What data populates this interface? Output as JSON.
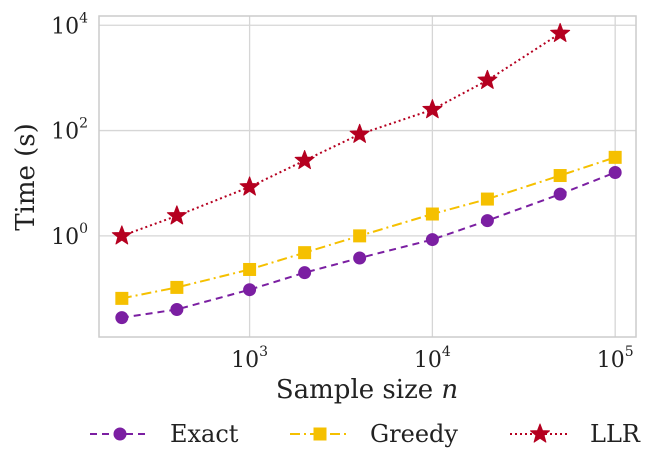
{
  "chart_data": {
    "type": "line",
    "xscale": "log",
    "yscale": "log",
    "xlabel_text": "Sample size",
    "xlabel_var": "n",
    "ylabel": "Time (s)",
    "xlim": [
      150,
      130000
    ],
    "ylim": [
      0.012,
      15000
    ],
    "grid": true,
    "legend_position": "bottom",
    "x_ticks": [
      {
        "value": 1000,
        "base": "10",
        "exp": "3"
      },
      {
        "value": 10000,
        "base": "10",
        "exp": "4"
      },
      {
        "value": 100000,
        "base": "10",
        "exp": "5"
      }
    ],
    "y_ticks": [
      {
        "value": 1,
        "base": "10",
        "exp": "0"
      },
      {
        "value": 100,
        "base": "10",
        "exp": "2"
      },
      {
        "value": 10000,
        "base": "10",
        "exp": "4"
      }
    ],
    "series": [
      {
        "name": "Exact",
        "color": "#7b1fa2",
        "marker": "circle",
        "dash": "7,5",
        "x": [
          200,
          400,
          1000,
          2000,
          4000,
          10000,
          20000,
          50000,
          100000
        ],
        "y": [
          0.028,
          0.04,
          0.095,
          0.2,
          0.38,
          0.85,
          1.95,
          6.2,
          16
        ]
      },
      {
        "name": "Greedy",
        "color": "#f5c000",
        "marker": "square",
        "dash": "10,4,2,4",
        "x": [
          200,
          400,
          1000,
          2000,
          4000,
          10000,
          20000,
          50000,
          100000
        ],
        "y": [
          0.065,
          0.105,
          0.23,
          0.48,
          1.0,
          2.6,
          5.0,
          14,
          31
        ]
      },
      {
        "name": "LLR",
        "color": "#b50020",
        "marker": "star",
        "dash": "2,3",
        "x": [
          200,
          400,
          1000,
          2000,
          4000,
          10000,
          20000,
          50000
        ],
        "y": [
          1.0,
          2.4,
          8.5,
          27,
          85,
          250,
          900,
          7000
        ]
      }
    ]
  }
}
